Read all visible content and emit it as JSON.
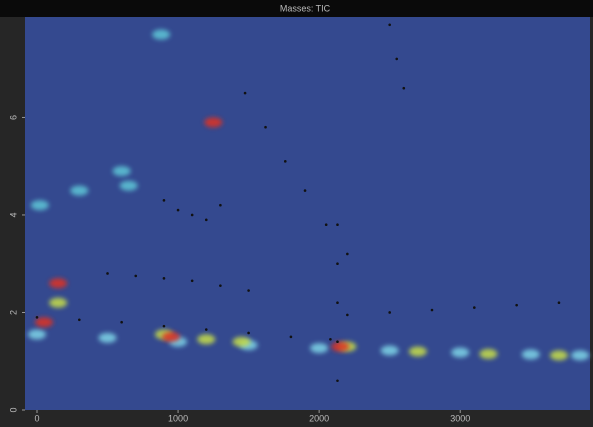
{
  "chart_data": {
    "type": "scatter",
    "title": "Masses: TIC",
    "xlim": [
      -85,
      3920
    ],
    "xticks": [
      0,
      1000,
      2000,
      3000
    ],
    "ylim": [
      0,
      8.06
    ],
    "yticks": [
      0,
      2,
      4,
      6
    ],
    "background": "#34498f",
    "series": [
      {
        "color": "#7fd6e8",
        "marker": "blob",
        "x": [
          0,
          500,
          1000,
          1500,
          2000,
          2500,
          3000,
          3500,
          3850
        ],
        "values": [
          1.55,
          1.48,
          1.4,
          1.33,
          1.27,
          1.22,
          1.18,
          1.14,
          1.12
        ]
      },
      {
        "color": "#c8e04a",
        "marker": "blob",
        "x": [
          150,
          900,
          1200,
          1450,
          2200,
          2700,
          3200,
          3700
        ],
        "values": [
          2.2,
          1.55,
          1.45,
          1.4,
          1.3,
          1.2,
          1.15,
          1.12
        ]
      },
      {
        "color": "#5ec8d8",
        "marker": "blob",
        "x": [
          300,
          600,
          650,
          880,
          20
        ],
        "values": [
          4.5,
          4.9,
          4.6,
          7.7,
          4.2
        ]
      },
      {
        "color": "#e03020",
        "marker": "blob",
        "x": [
          50,
          150,
          950,
          1250,
          2150
        ],
        "values": [
          1.8,
          2.6,
          1.5,
          5.9,
          1.3
        ]
      },
      {
        "color": "#111111",
        "marker": "dot",
        "x": [
          0,
          300,
          600,
          900,
          1200,
          1500,
          1800,
          2080,
          1475,
          1620,
          1760,
          1900,
          2050,
          2200,
          2130,
          2130,
          2130,
          2130,
          2130,
          500,
          700,
          900,
          1100,
          1300,
          1500,
          2200,
          2500,
          2800,
          3100,
          3400,
          3700,
          900,
          1000,
          1100,
          1200,
          1300,
          2500,
          2550,
          2600
        ],
        "values": [
          1.9,
          1.85,
          1.8,
          1.72,
          1.65,
          1.58,
          1.5,
          1.45,
          6.5,
          5.8,
          5.1,
          4.5,
          3.8,
          3.2,
          3.8,
          3.0,
          2.2,
          1.4,
          0.6,
          2.8,
          2.75,
          2.7,
          2.65,
          2.55,
          2.45,
          1.95,
          2.0,
          2.05,
          2.1,
          2.15,
          2.2,
          4.3,
          4.1,
          4.0,
          3.9,
          4.2,
          7.9,
          7.2,
          6.6
        ]
      }
    ]
  }
}
